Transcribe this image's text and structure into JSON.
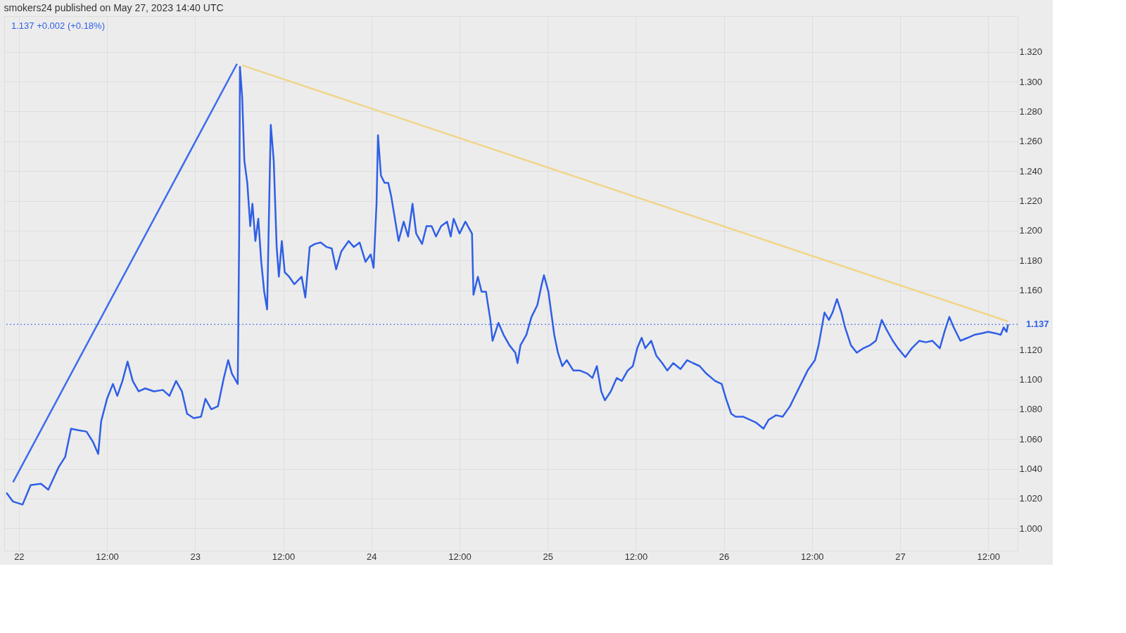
{
  "chart_data": {
    "type": "line",
    "title": "smokers24 published on May 27, 2023 14:40 UTC",
    "annotations": [
      "1.137 +0.002 (+0.18%)"
    ],
    "xlim": [
      "2023-05-21T22:00",
      "2023-05-27T16:00"
    ],
    "ylim": [
      0.985,
      1.344
    ],
    "xticks": [
      {
        "value": "2023-05-22T00:00",
        "label": "22"
      },
      {
        "value": "2023-05-22T12:00",
        "label": "12:00"
      },
      {
        "value": "2023-05-23T00:00",
        "label": "23"
      },
      {
        "value": "2023-05-23T12:00",
        "label": "12:00"
      },
      {
        "value": "2023-05-24T00:00",
        "label": "24"
      },
      {
        "value": "2023-05-24T12:00",
        "label": "12:00"
      },
      {
        "value": "2023-05-25T00:00",
        "label": "25"
      },
      {
        "value": "2023-05-25T12:00",
        "label": "12:00"
      },
      {
        "value": "2023-05-26T00:00",
        "label": "26"
      },
      {
        "value": "2023-05-26T12:00",
        "label": "12:00"
      },
      {
        "value": "2023-05-27T00:00",
        "label": "27"
      },
      {
        "value": "2023-05-27T12:00",
        "label": "12:00"
      }
    ],
    "yticks": [
      {
        "value": 1.0,
        "label": "1.000"
      },
      {
        "value": 1.02,
        "label": "1.020"
      },
      {
        "value": 1.04,
        "label": "1.040"
      },
      {
        "value": 1.06,
        "label": "1.060"
      },
      {
        "value": 1.08,
        "label": "1.080"
      },
      {
        "value": 1.1,
        "label": "1.100"
      },
      {
        "value": 1.12,
        "label": "1.120"
      },
      {
        "value": 1.16,
        "label": "1.160"
      },
      {
        "value": 1.18,
        "label": "1.180"
      },
      {
        "value": 1.2,
        "label": "1.200"
      },
      {
        "value": 1.22,
        "label": "1.220"
      },
      {
        "value": 1.24,
        "label": "1.240"
      },
      {
        "value": 1.26,
        "label": "1.260"
      },
      {
        "value": 1.28,
        "label": "1.280"
      },
      {
        "value": 1.3,
        "label": "1.300"
      },
      {
        "value": 1.32,
        "label": "1.320"
      }
    ],
    "grid": true,
    "marker": "none",
    "line_style": "solid",
    "ref_lines": [
      {
        "axis": "y",
        "value": 1.137,
        "label": "1.137",
        "color": "#2f5fe6",
        "line_style": "dotted"
      }
    ],
    "series": [
      {
        "color": "#2f5fe6",
        "x": [
          "2023-05-21T22:18",
          "2023-05-21T23:12",
          "2023-05-22T00:30",
          "2023-05-22T01:36",
          "2023-05-22T03:00",
          "2023-05-22T04:00",
          "2023-05-22T05:24",
          "2023-05-22T06:18",
          "2023-05-22T07:06",
          "2023-05-22T08:00",
          "2023-05-22T09:12",
          "2023-05-22T10:06",
          "2023-05-22T10:48",
          "2023-05-22T11:12",
          "2023-05-22T12:00",
          "2023-05-22T12:48",
          "2023-05-22T13:24",
          "2023-05-22T14:06",
          "2023-05-22T14:48",
          "2023-05-22T15:30",
          "2023-05-22T16:18",
          "2023-05-22T17:12",
          "2023-05-22T18:24",
          "2023-05-22T19:36",
          "2023-05-22T20:30",
          "2023-05-22T21:24",
          "2023-05-22T22:12",
          "2023-05-22T22:54",
          "2023-05-22T23:48",
          "2023-05-23T00:48",
          "2023-05-23T01:24",
          "2023-05-23T02:12",
          "2023-05-23T03:06",
          "2023-05-23T03:54",
          "2023-05-23T04:30",
          "2023-05-23T05:00",
          "2023-05-23T05:48",
          "2023-05-23T06:00",
          "2023-05-23T06:06",
          "2023-05-23T06:24",
          "2023-05-23T06:42",
          "2023-05-23T07:06",
          "2023-05-23T07:30",
          "2023-05-23T07:48",
          "2023-05-23T08:12",
          "2023-05-23T08:36",
          "2023-05-23T09:00",
          "2023-05-23T09:24",
          "2023-05-23T09:48",
          "2023-05-23T10:06",
          "2023-05-23T10:18",
          "2023-05-23T10:42",
          "2023-05-23T11:06",
          "2023-05-23T11:24",
          "2023-05-23T11:48",
          "2023-05-23T12:12",
          "2023-05-23T12:48",
          "2023-05-23T13:30",
          "2023-05-23T14:30",
          "2023-05-23T15:00",
          "2023-05-23T15:36",
          "2023-05-23T16:18",
          "2023-05-23T17:06",
          "2023-05-23T17:54",
          "2023-05-23T18:36",
          "2023-05-23T19:12",
          "2023-05-23T19:54",
          "2023-05-23T20:54",
          "2023-05-23T21:36",
          "2023-05-23T22:24",
          "2023-05-23T23:12",
          "2023-05-23T23:54",
          "2023-05-24T00:18",
          "2023-05-24T00:42",
          "2023-05-24T00:54",
          "2023-05-24T01:18",
          "2023-05-24T01:48",
          "2023-05-24T02:18",
          "2023-05-24T02:42",
          "2023-05-24T03:12",
          "2023-05-24T03:42",
          "2023-05-24T04:24",
          "2023-05-24T05:00",
          "2023-05-24T05:36",
          "2023-05-24T06:06",
          "2023-05-24T06:54",
          "2023-05-24T07:30",
          "2023-05-24T08:12",
          "2023-05-24T08:48",
          "2023-05-24T09:30",
          "2023-05-24T10:18",
          "2023-05-24T10:48",
          "2023-05-24T11:12",
          "2023-05-24T12:00",
          "2023-05-24T12:48",
          "2023-05-24T13:42",
          "2023-05-24T13:54",
          "2023-05-24T14:30",
          "2023-05-24T15:00",
          "2023-05-24T15:36",
          "2023-05-24T16:12",
          "2023-05-24T16:30",
          "2023-05-24T17:18",
          "2023-05-24T18:00",
          "2023-05-24T18:48",
          "2023-05-24T19:36",
          "2023-05-24T19:54",
          "2023-05-24T20:18",
          "2023-05-24T21:06",
          "2023-05-24T21:48",
          "2023-05-24T22:36",
          "2023-05-24T23:12",
          "2023-05-24T23:30",
          "2023-05-25T00:06",
          "2023-05-25T00:54",
          "2023-05-25T01:24",
          "2023-05-25T02:00",
          "2023-05-25T02:36",
          "2023-05-25T03:30",
          "2023-05-25T04:24",
          "2023-05-25T05:24",
          "2023-05-25T06:06",
          "2023-05-25T06:42",
          "2023-05-25T07:18",
          "2023-05-25T07:48",
          "2023-05-25T08:36",
          "2023-05-25T09:24",
          "2023-05-25T10:06",
          "2023-05-25T10:54",
          "2023-05-25T11:36",
          "2023-05-25T12:12",
          "2023-05-25T12:48",
          "2023-05-25T13:18",
          "2023-05-25T14:06",
          "2023-05-25T14:48",
          "2023-05-25T15:36",
          "2023-05-25T16:18",
          "2023-05-25T17:06",
          "2023-05-25T18:06",
          "2023-05-25T19:00",
          "2023-05-25T19:48",
          "2023-05-25T20:42",
          "2023-05-25T21:36",
          "2023-05-25T22:48",
          "2023-05-25T23:42",
          "2023-05-26T00:18",
          "2023-05-26T01:00",
          "2023-05-26T01:36",
          "2023-05-26T02:36",
          "2023-05-26T03:30",
          "2023-05-26T04:24",
          "2023-05-26T05:24",
          "2023-05-26T06:06",
          "2023-05-26T07:06",
          "2023-05-26T08:00",
          "2023-05-26T09:00",
          "2023-05-26T09:30",
          "2023-05-26T10:30",
          "2023-05-26T11:24",
          "2023-05-26T12:24",
          "2023-05-26T12:54",
          "2023-05-26T13:42",
          "2023-05-26T14:18",
          "2023-05-26T14:48",
          "2023-05-26T15:24",
          "2023-05-26T16:00",
          "2023-05-26T16:30",
          "2023-05-26T17:18",
          "2023-05-26T18:06",
          "2023-05-26T19:00",
          "2023-05-26T19:54",
          "2023-05-26T20:42",
          "2023-05-26T21:30",
          "2023-05-26T22:12",
          "2023-05-26T23:00",
          "2023-05-26T23:42",
          "2023-05-27T00:42",
          "2023-05-27T01:36",
          "2023-05-27T02:36",
          "2023-05-27T03:30",
          "2023-05-27T04:24",
          "2023-05-27T05:24",
          "2023-05-27T06:06",
          "2023-05-27T06:42",
          "2023-05-27T07:18",
          "2023-05-27T08:12",
          "2023-05-27T09:12",
          "2023-05-27T10:06",
          "2023-05-27T11:06",
          "2023-05-27T12:00",
          "2023-05-27T13:00",
          "2023-05-27T13:42",
          "2023-05-27T14:06",
          "2023-05-27T14:30",
          "2023-05-27T14:42"
        ],
        "values": [
          1.024,
          1.018,
          1.016,
          1.029,
          1.03,
          1.026,
          1.041,
          1.048,
          1.067,
          1.066,
          1.065,
          1.058,
          1.05,
          1.072,
          1.087,
          1.097,
          1.089,
          1.099,
          1.112,
          1.099,
          1.092,
          1.094,
          1.092,
          1.093,
          1.089,
          1.099,
          1.092,
          1.077,
          1.074,
          1.075,
          1.087,
          1.08,
          1.082,
          1.101,
          1.113,
          1.104,
          1.097,
          1.198,
          1.31,
          1.29,
          1.247,
          1.232,
          1.203,
          1.218,
          1.193,
          1.208,
          1.179,
          1.159,
          1.147,
          1.223,
          1.271,
          1.247,
          1.189,
          1.169,
          1.193,
          1.172,
          1.169,
          1.164,
          1.169,
          1.155,
          1.189,
          1.191,
          1.192,
          1.189,
          1.188,
          1.174,
          1.186,
          1.193,
          1.189,
          1.192,
          1.179,
          1.184,
          1.175,
          1.218,
          1.264,
          1.237,
          1.232,
          1.232,
          1.223,
          1.208,
          1.193,
          1.206,
          1.196,
          1.218,
          1.198,
          1.191,
          1.203,
          1.203,
          1.196,
          1.203,
          1.206,
          1.196,
          1.208,
          1.198,
          1.206,
          1.198,
          1.157,
          1.169,
          1.159,
          1.159,
          1.14,
          1.126,
          1.138,
          1.13,
          1.123,
          1.118,
          1.111,
          1.123,
          1.13,
          1.142,
          1.15,
          1.164,
          1.17,
          1.159,
          1.13,
          1.118,
          1.109,
          1.113,
          1.106,
          1.106,
          1.104,
          1.101,
          1.109,
          1.092,
          1.086,
          1.092,
          1.101,
          1.099,
          1.106,
          1.109,
          1.121,
          1.128,
          1.121,
          1.126,
          1.116,
          1.111,
          1.106,
          1.111,
          1.107,
          1.113,
          1.111,
          1.109,
          1.104,
          1.099,
          1.097,
          1.087,
          1.077,
          1.075,
          1.075,
          1.073,
          1.071,
          1.067,
          1.073,
          1.076,
          1.075,
          1.082,
          1.087,
          1.097,
          1.106,
          1.113,
          1.123,
          1.145,
          1.14,
          1.145,
          1.154,
          1.145,
          1.135,
          1.123,
          1.118,
          1.121,
          1.123,
          1.126,
          1.14,
          1.133,
          1.126,
          1.121,
          1.115,
          1.121,
          1.126,
          1.125,
          1.126,
          1.121,
          1.133,
          1.142,
          1.135,
          1.126,
          1.128,
          1.13,
          1.131,
          1.132,
          1.131,
          1.13,
          1.135,
          1.132,
          1.137
        ]
      },
      {
        "color": "#3d6bef",
        "x": [
          "2023-05-21T23:12",
          "2023-05-23T05:42"
        ],
        "values": [
          1.031,
          1.312
        ]
      },
      {
        "color": "#f0d68a",
        "x": [
          "2023-05-23T06:24",
          "2023-05-27T14:42"
        ],
        "values": [
          1.311,
          1.139
        ]
      }
    ]
  }
}
